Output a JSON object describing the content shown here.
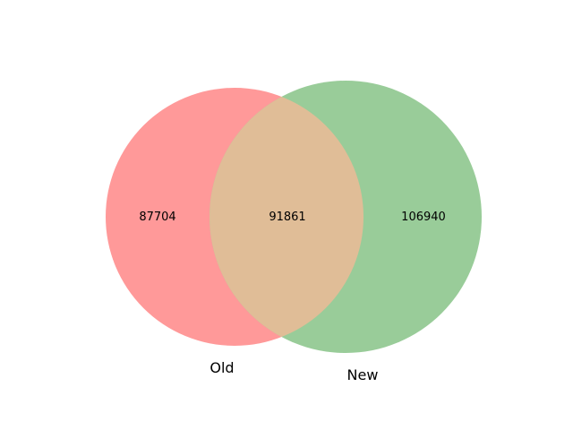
{
  "venn": {
    "sets": [
      {
        "label": "Old",
        "color": "#ff9999"
      },
      {
        "label": "New",
        "color": "#99cc99"
      }
    ],
    "overlap_color": "#e0bd97",
    "counts": {
      "old_only": "87704",
      "both": "91861",
      "new_only": "106940"
    }
  }
}
